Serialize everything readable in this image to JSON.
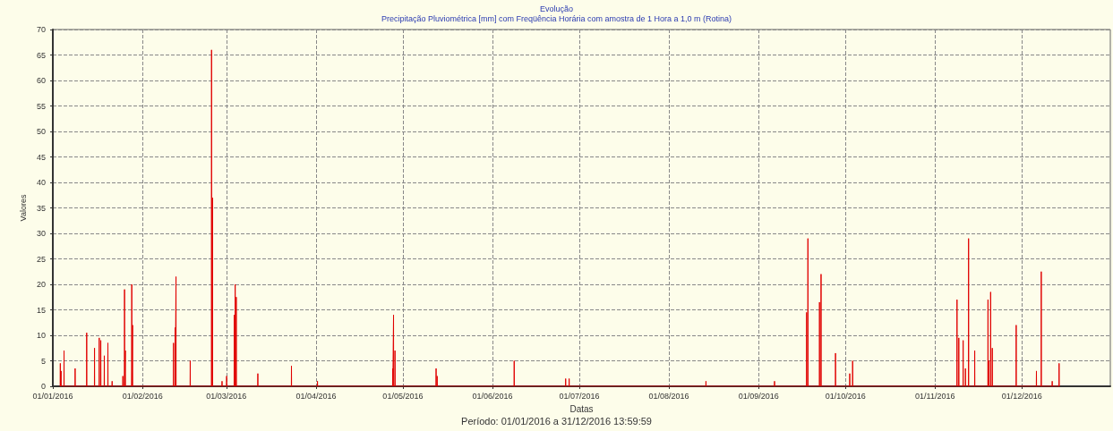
{
  "chart_data": {
    "type": "line",
    "title": "Evolução",
    "subtitle": "Precipitação Pluviométrica [mm] com Freqüência Horária com amostra de 1 Hora a 1,0 m (Rotina)",
    "xlabel": "Datas",
    "ylabel": "Valores",
    "annotations": [
      "Período: 01/01/2016 a 31/12/2016 13:59:59"
    ],
    "xlim": [
      "2016-01-01",
      "2016-12-31T13:59"
    ],
    "ylim": [
      0,
      70
    ],
    "yticks": [
      0,
      5,
      10,
      15,
      20,
      25,
      30,
      35,
      40,
      45,
      50,
      55,
      60,
      65,
      70
    ],
    "xticks": [
      {
        "value": "2016-01-01",
        "label": "01/01/2016"
      },
      {
        "value": "2016-02-01",
        "label": "01/02/2016"
      },
      {
        "value": "2016-03-01",
        "label": "01/03/2016"
      },
      {
        "value": "2016-04-01",
        "label": "01/04/2016"
      },
      {
        "value": "2016-05-01",
        "label": "01/05/2016"
      },
      {
        "value": "2016-06-01",
        "label": "01/06/2016"
      },
      {
        "value": "2016-07-01",
        "label": "01/07/2016"
      },
      {
        "value": "2016-08-01",
        "label": "01/08/2016"
      },
      {
        "value": "2016-09-01",
        "label": "01/09/2016"
      },
      {
        "value": "2016-10-01",
        "label": "01/10/2016"
      },
      {
        "value": "2016-11-01",
        "label": "01/11/2016"
      },
      {
        "value": "2016-12-01",
        "label": "01/12/2016"
      }
    ],
    "grid": true,
    "marker": "none",
    "line_style": "solid",
    "series": [
      {
        "color": "#e00000",
        "x": [
          "2016-01-03T13:00",
          "2016-01-03T14:00",
          "2016-01-03T15:00",
          "2016-01-03T20:00",
          "2016-01-03T21:00",
          "2016-01-03T22:00",
          "2016-01-04T20:00",
          "2016-01-04T21:00",
          "2016-01-04T22:00",
          "2016-01-08T16:00",
          "2016-01-08T17:00",
          "2016-01-08T18:00",
          "2016-01-12T16:00",
          "2016-01-12T17:00",
          "2016-01-12T18:00",
          "2016-01-15T09:00",
          "2016-01-15T10:00",
          "2016-01-15T11:00",
          "2016-01-17T00:00",
          "2016-01-17T01:00",
          "2016-01-17T02:00",
          "2016-01-17T13:00",
          "2016-01-17T14:00",
          "2016-01-17T15:00",
          "2016-01-18T18:00",
          "2016-01-18T19:00",
          "2016-01-18T20:00",
          "2016-01-20T00:00",
          "2016-01-20T01:00",
          "2016-01-20T02:00",
          "2016-01-21T11:00",
          "2016-01-21T12:00",
          "2016-01-21T13:00",
          "2016-01-25T04:00",
          "2016-01-25T05:00",
          "2016-01-25T06:00",
          "2016-01-25T18:00",
          "2016-01-25T19:00",
          "2016-01-25T20:00",
          "2016-01-26T01:00",
          "2016-01-26T02:00",
          "2016-01-26T03:00",
          "2016-01-28T06:00",
          "2016-01-28T07:00",
          "2016-01-28T08:00",
          "2016-01-28T13:00",
          "2016-01-28T14:00",
          "2016-01-28T15:00",
          "2016-02-11T16:00",
          "2016-02-11T17:00",
          "2016-02-11T18:00",
          "2016-02-12T06:00",
          "2016-02-12T07:00",
          "2016-02-12T08:00",
          "2016-02-12T13:00",
          "2016-02-12T14:00",
          "2016-02-12T15:00",
          "2016-02-17T11:00",
          "2016-02-17T12:00",
          "2016-02-17T13:00",
          "2016-02-24T20:00",
          "2016-02-24T21:00",
          "2016-02-24T22:00",
          "2016-02-25T04:00",
          "2016-02-25T05:00",
          "2016-02-25T06:00",
          "2016-02-28T11:00",
          "2016-02-28T12:00",
          "2016-02-28T13:00",
          "2016-03-01T01:00",
          "2016-03-01T02:00",
          "2016-03-01T03:00",
          "2016-03-03T16:00",
          "2016-03-03T17:00",
          "2016-03-03T18:00",
          "2016-03-04T00:00",
          "2016-03-04T01:00",
          "2016-03-04T02:00",
          "2016-03-04T09:00",
          "2016-03-04T10:00",
          "2016-03-04T11:00",
          "2016-03-11T20:00",
          "2016-03-11T21:00",
          "2016-03-11T22:00",
          "2016-03-23T11:00",
          "2016-03-23T12:00",
          "2016-03-23T13:00",
          "2016-04-01T11:00",
          "2016-04-01T12:00",
          "2016-04-01T13:00",
          "2016-04-27T11:00",
          "2016-04-27T12:00",
          "2016-04-27T13:00",
          "2016-04-27T18:00",
          "2016-04-27T19:00",
          "2016-04-27T20:00",
          "2016-04-28T06:00",
          "2016-04-28T07:00",
          "2016-04-28T08:00",
          "2016-05-12T11:00",
          "2016-05-12T12:00",
          "2016-05-12T13:00",
          "2016-05-12T20:00",
          "2016-05-12T21:00",
          "2016-05-12T22:00",
          "2016-06-08T11:00",
          "2016-06-08T12:00",
          "2016-06-08T13:00",
          "2016-06-26T06:00",
          "2016-06-26T07:00",
          "2016-06-26T08:00",
          "2016-06-27T11:00",
          "2016-06-27T12:00",
          "2016-06-27T13:00",
          "2016-08-13T18:00",
          "2016-08-13T19:00",
          "2016-08-13T20:00",
          "2016-09-06T11:00",
          "2016-09-06T12:00",
          "2016-09-06T13:00",
          "2016-09-17T13:00",
          "2016-09-17T14:00",
          "2016-09-17T15:00",
          "2016-09-18T00:00",
          "2016-09-18T01:00",
          "2016-09-18T02:00",
          "2016-09-22T00:00",
          "2016-09-22T01:00",
          "2016-09-22T02:00",
          "2016-09-22T13:00",
          "2016-09-22T14:00",
          "2016-09-22T15:00",
          "2016-09-27T13:00",
          "2016-09-27T14:00",
          "2016-09-27T15:00",
          "2016-10-02T11:00",
          "2016-10-02T12:00",
          "2016-10-02T13:00",
          "2016-10-03T11:00",
          "2016-10-03T12:00",
          "2016-10-03T13:00",
          "2016-11-08T13:00",
          "2016-11-08T14:00",
          "2016-11-08T15:00",
          "2016-11-09T04:00",
          "2016-11-09T05:00",
          "2016-11-09T06:00",
          "2016-11-10T16:00",
          "2016-11-10T17:00",
          "2016-11-10T18:00",
          "2016-11-11T11:00",
          "2016-11-11T12:00",
          "2016-11-11T13:00",
          "2016-11-12T13:00",
          "2016-11-12T14:00",
          "2016-11-12T15:00",
          "2016-11-14T16:00",
          "2016-11-14T17:00",
          "2016-11-14T18:00",
          "2016-11-19T06:00",
          "2016-11-19T07:00",
          "2016-11-19T08:00",
          "2016-11-19T13:00",
          "2016-11-19T14:00",
          "2016-11-19T15:00",
          "2016-11-20T04:00",
          "2016-11-20T05:00",
          "2016-11-20T06:00",
          "2016-11-20T18:00",
          "2016-11-20T19:00",
          "2016-11-20T20:00",
          "2016-11-29T00:00",
          "2016-11-29T01:00",
          "2016-11-29T02:00",
          "2016-12-06T00:00",
          "2016-12-06T01:00",
          "2016-12-06T02:00",
          "2016-12-07T16:00",
          "2016-12-07T17:00",
          "2016-12-07T18:00",
          "2016-12-11T11:00",
          "2016-12-11T12:00",
          "2016-12-11T13:00",
          "2016-12-13T20:00",
          "2016-12-13T21:00",
          "2016-12-13T22:00"
        ],
        "values": [
          0,
          4.5,
          0,
          0,
          3,
          0,
          0,
          7,
          0,
          0,
          3.5,
          0,
          0,
          10.5,
          0,
          0,
          7.5,
          0,
          0,
          9.5,
          0,
          0,
          9,
          0,
          0,
          6,
          0,
          0,
          8.5,
          0,
          0,
          1,
          0,
          0,
          2,
          0,
          0,
          19,
          0,
          0,
          7,
          0,
          0,
          20,
          0,
          0,
          12,
          0,
          0,
          8.5,
          0,
          0,
          11.5,
          0,
          0,
          21.5,
          0,
          0,
          5,
          0,
          0,
          66,
          0,
          0,
          37,
          0,
          0,
          1,
          0,
          0,
          2,
          0,
          0,
          14,
          0,
          0,
          20,
          0,
          0,
          17.5,
          0,
          0,
          2.5,
          0,
          0,
          4,
          0,
          0,
          1,
          0,
          0,
          3.5,
          0,
          0,
          14,
          0,
          0,
          7,
          0,
          0,
          3.5,
          0,
          0,
          2,
          0,
          0,
          5,
          0,
          0,
          1.5,
          0,
          0,
          1.5,
          0,
          0,
          1,
          0,
          0,
          1,
          0,
          0,
          14.5,
          0,
          0,
          29,
          0,
          0,
          16.5,
          0,
          0,
          22,
          0,
          0,
          6.5,
          0,
          0,
          2.5,
          0,
          0,
          5,
          0,
          0,
          17,
          0,
          0,
          9.5,
          0,
          0,
          9,
          0,
          0,
          3.5,
          0,
          0,
          29,
          0,
          0,
          7,
          0,
          0,
          17,
          0,
          0,
          5,
          0,
          0,
          18.5,
          0,
          0,
          7.5,
          0,
          0,
          12,
          0,
          0,
          3,
          0,
          0,
          22.5,
          0,
          0,
          1,
          0,
          0,
          4.5,
          0
        ]
      }
    ]
  }
}
